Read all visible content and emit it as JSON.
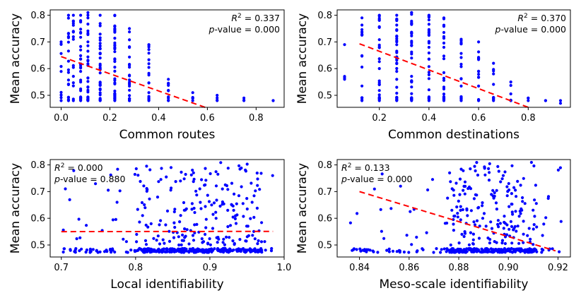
{
  "chart_data": [
    {
      "type": "scatter",
      "id": "p1",
      "title": "",
      "xlabel": "Common routes",
      "ylabel": "Mean accuracy",
      "xlim": [
        -0.045,
        0.915
      ],
      "ylim": [
        0.455,
        0.82
      ],
      "xticks": [
        0.0,
        0.2,
        0.4,
        0.6,
        0.8
      ],
      "yticks": [
        0.5,
        0.6,
        0.7,
        0.8
      ],
      "xtick_labels": [
        "0.0",
        "0.2",
        "0.4",
        "0.6",
        "0.8"
      ],
      "ytick_labels": [
        "0.5",
        "0.6",
        "0.7",
        "0.8"
      ],
      "annotation": {
        "r2_label": "R",
        "r2_value": "= 0.337",
        "p_label": "p",
        "p_value": "-value = 0.000",
        "position": "top-right"
      },
      "trend": {
        "x": [
          0.0,
          0.6
        ],
        "y": [
          0.645,
          0.452
        ]
      },
      "points": {
        "x_levels": [
          0.0,
          0.03,
          0.05,
          0.08,
          0.11,
          0.16,
          0.22,
          0.28,
          0.36,
          0.44,
          0.54,
          0.64,
          0.75,
          0.87
        ],
        "counts": [
          10,
          18,
          16,
          30,
          34,
          34,
          42,
          24,
          18,
          10,
          5,
          4,
          3,
          2
        ],
        "y_max": [
          0.7,
          0.8,
          0.8,
          0.8,
          0.81,
          0.8,
          0.8,
          0.75,
          0.69,
          0.56,
          0.51,
          0.5,
          0.49,
          0.48
        ],
        "y_min": [
          0.48,
          0.48,
          0.48,
          0.48,
          0.48,
          0.48,
          0.48,
          0.48,
          0.48,
          0.48,
          0.48,
          0.48,
          0.48,
          0.48
        ]
      }
    },
    {
      "type": "scatter",
      "id": "p2",
      "title": "",
      "xlabel": "Common destinations",
      "ylabel": "Mean accuracy",
      "xlim": [
        0.03,
        0.97
      ],
      "ylim": [
        0.455,
        0.82
      ],
      "xticks": [
        0.2,
        0.4,
        0.6,
        0.8
      ],
      "yticks": [
        0.5,
        0.6,
        0.7,
        0.8
      ],
      "xtick_labels": [
        "0.2",
        "0.4",
        "0.6",
        "0.8"
      ],
      "ytick_labels": [
        "0.5",
        "0.6",
        "0.7",
        "0.8"
      ],
      "annotation": {
        "r2_label": "R",
        "r2_value": "= 0.370",
        "p_label": "p",
        "p_value": "-value = 0.000",
        "position": "top-right"
      },
      "trend": {
        "x": [
          0.12,
          0.8
        ],
        "y": [
          0.693,
          0.455
        ]
      },
      "points": {
        "x_levels": [
          0.06,
          0.13,
          0.2,
          0.27,
          0.33,
          0.4,
          0.46,
          0.53,
          0.6,
          0.66,
          0.73,
          0.8,
          0.87,
          0.93
        ],
        "counts": [
          4,
          18,
          26,
          34,
          36,
          30,
          30,
          20,
          16,
          10,
          6,
          3,
          2,
          2
        ],
        "y_max": [
          0.69,
          0.79,
          0.8,
          0.8,
          0.81,
          0.8,
          0.79,
          0.71,
          0.7,
          0.62,
          0.55,
          0.49,
          0.48,
          0.48
        ],
        "y_min": [
          0.56,
          0.48,
          0.48,
          0.48,
          0.48,
          0.48,
          0.48,
          0.48,
          0.48,
          0.48,
          0.48,
          0.48,
          0.48,
          0.47
        ]
      }
    },
    {
      "type": "scatter",
      "id": "p3",
      "title": "",
      "xlabel": "Local identifiability",
      "ylabel": "Mean accuracy",
      "xlim": [
        0.685,
        1.0
      ],
      "ylim": [
        0.455,
        0.82
      ],
      "xticks": [
        0.7,
        0.8,
        0.9,
        1.0
      ],
      "yticks": [
        0.5,
        0.6,
        0.7,
        0.8
      ],
      "xtick_labels": [
        "0.7",
        "0.8",
        "0.9",
        "1.0"
      ],
      "ytick_labels": [
        "0.5",
        "0.6",
        "0.7",
        "0.8"
      ],
      "annotation": {
        "r2_label": "R",
        "r2_value": "= 0.000",
        "p_label": "p",
        "p_value": "-value = 0.880",
        "position": "top-left"
      },
      "trend": {
        "x": [
          0.7,
          0.985
        ],
        "y": [
          0.55,
          0.551
        ]
      },
      "points": {
        "x_range": [
          0.7,
          0.985
        ],
        "x_focus": [
          0.8,
          0.97
        ],
        "count_band": 300,
        "count_cloud": 220,
        "band_y": [
          0.472,
          0.487
        ],
        "cloud_y": [
          0.5,
          0.81
        ]
      }
    },
    {
      "type": "scatter",
      "id": "p4",
      "title": "",
      "xlabel": "Meso-scale identifiability",
      "ylabel": "Mean accuracy",
      "xlim": [
        0.831,
        0.925
      ],
      "ylim": [
        0.455,
        0.82
      ],
      "xticks": [
        0.84,
        0.86,
        0.88,
        0.9,
        0.92
      ],
      "yticks": [
        0.5,
        0.6,
        0.7,
        0.8
      ],
      "xtick_labels": [
        "0.84",
        "0.86",
        "0.88",
        "0.90",
        "0.92"
      ],
      "ytick_labels": [
        "0.5",
        "0.6",
        "0.7",
        "0.8"
      ],
      "annotation": {
        "r2_label": "R",
        "r2_value": "= 0.133",
        "p_label": "p",
        "p_value": "-value = 0.000",
        "position": "top-left"
      },
      "trend": {
        "x": [
          0.84,
          0.919
        ],
        "y": [
          0.7,
          0.478
        ]
      },
      "points": {
        "x_range": [
          0.835,
          0.922
        ],
        "x_focus": [
          0.875,
          0.912
        ],
        "count_band": 260,
        "count_cloud": 200,
        "band_y": [
          0.472,
          0.487
        ],
        "cloud_y": [
          0.5,
          0.81
        ]
      }
    }
  ]
}
